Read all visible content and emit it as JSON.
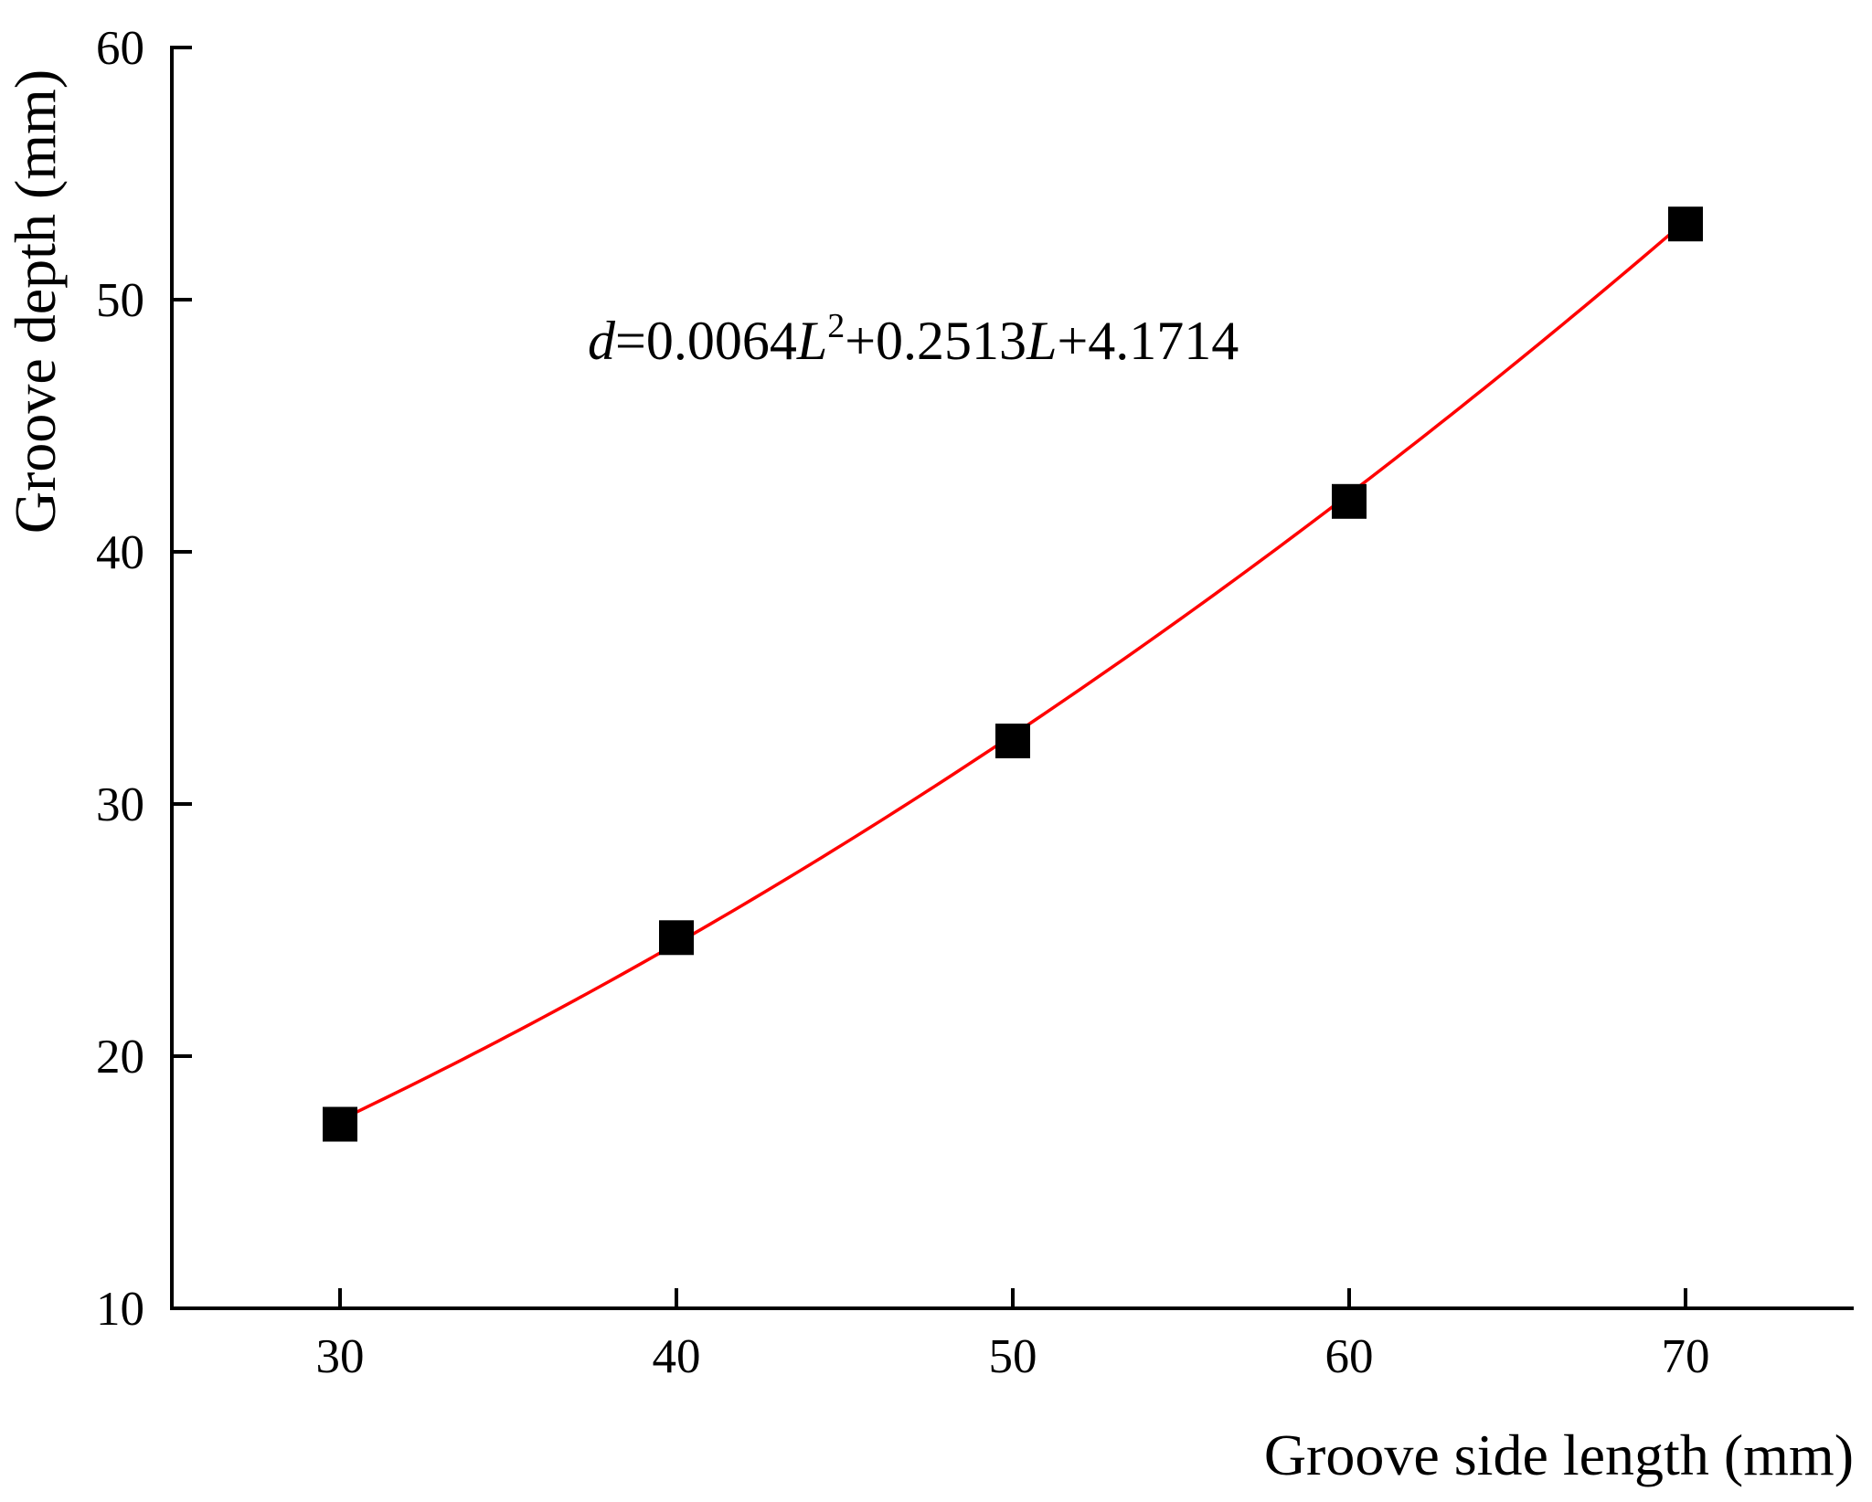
{
  "chart_data": {
    "type": "scatter",
    "title": "",
    "xlabel": "Groove side length (mm)",
    "ylabel": "Groove depth (mm)",
    "xlim": [
      25,
      75
    ],
    "ylim": [
      10,
      60
    ],
    "xticks": [
      30,
      40,
      50,
      60,
      70
    ],
    "yticks": [
      10,
      20,
      30,
      40,
      50,
      60
    ],
    "xtick_labels": [
      "30",
      "40",
      "50",
      "60",
      "70"
    ],
    "ytick_labels": [
      "10",
      "20",
      "30",
      "40",
      "50",
      "60"
    ],
    "grid": false,
    "legend": "none",
    "series": [
      {
        "kind": "scatter",
        "marker": "square",
        "color": "#000000",
        "x": [
          30,
          40,
          50,
          60,
          70
        ],
        "y": [
          17.3,
          24.7,
          32.5,
          42.0,
          53.0
        ]
      },
      {
        "kind": "fit-line",
        "color": "#ff0000",
        "equation": {
          "a": 0.0064,
          "b": 0.2513,
          "c": 4.1714
        },
        "x_range": [
          30,
          70
        ]
      }
    ],
    "annotation": {
      "var_d": "d",
      "part1": "=0.0064",
      "var_L1": "L",
      "sup": "2",
      "part2": "+0.2513",
      "var_L2": "L",
      "part3": "+4.1714"
    }
  }
}
